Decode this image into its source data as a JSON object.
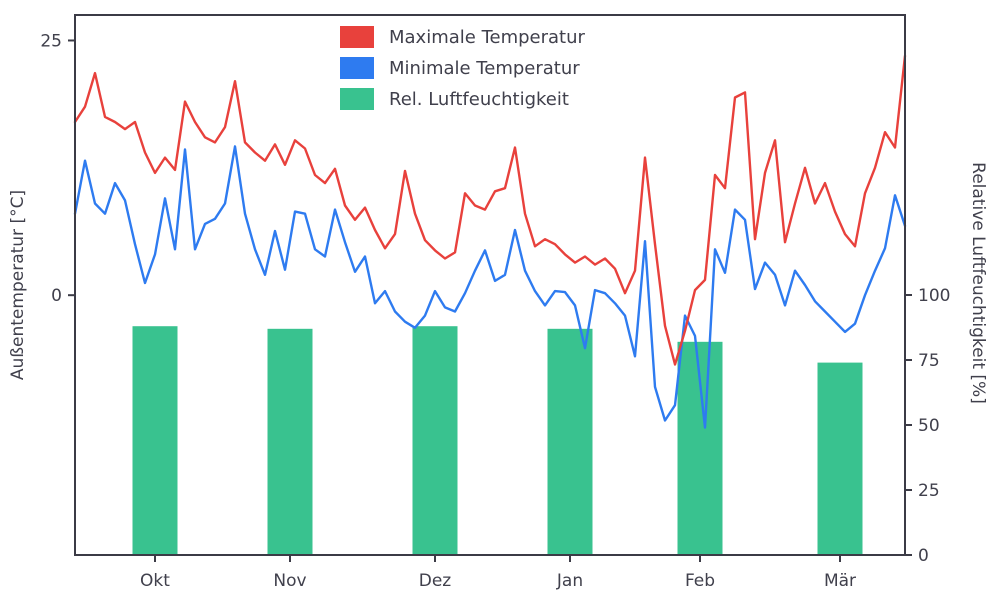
{
  "colors": {
    "max_temp": "#e8413c",
    "min_temp": "#2e7bf0",
    "humidity": "#39c28f",
    "axis": "#3b3b46",
    "text": "#40404c",
    "background": "#ffffff"
  },
  "chart_data": {
    "type": "line+bar",
    "title": "",
    "x_unit": "days from season start (Oct–Mar, daily values)",
    "x_range": [
      0,
      166
    ],
    "x": [
      0,
      2,
      4,
      6,
      8,
      10,
      12,
      14,
      16,
      18,
      20,
      22,
      24,
      26,
      28,
      30,
      32,
      34,
      36,
      38,
      40,
      42,
      44,
      46,
      48,
      50,
      52,
      54,
      56,
      58,
      60,
      62,
      64,
      66,
      68,
      70,
      72,
      74,
      76,
      78,
      80,
      82,
      84,
      86,
      88,
      90,
      92,
      94,
      96,
      98,
      100,
      102,
      104,
      106,
      108,
      110,
      112,
      114,
      116,
      118,
      120,
      122,
      124,
      126,
      128,
      130,
      132,
      134,
      136,
      138,
      140,
      142,
      144,
      146,
      148,
      150,
      152,
      154,
      156,
      158,
      160,
      162,
      164,
      166
    ],
    "series": [
      {
        "name": "Maximale Temperatur",
        "type": "line",
        "axis": "left",
        "color": "#e8413c",
        "values": [
          17.0,
          18.5,
          21.8,
          17.5,
          17.0,
          16.3,
          17.0,
          14.0,
          12.0,
          13.5,
          12.3,
          19.0,
          17.0,
          15.5,
          15.0,
          16.5,
          21.0,
          15.0,
          14.0,
          13.2,
          14.8,
          12.8,
          15.2,
          14.4,
          11.8,
          11.0,
          12.4,
          8.8,
          7.4,
          8.6,
          6.4,
          4.6,
          6.0,
          12.2,
          8.0,
          5.4,
          4.4,
          3.6,
          4.2,
          10.0,
          8.8,
          8.4,
          10.2,
          10.5,
          14.5,
          8.0,
          4.8,
          5.5,
          5.0,
          4.0,
          3.2,
          3.8,
          3.0,
          3.6,
          2.6,
          0.2,
          2.4,
          13.5,
          5.0,
          -3.0,
          -6.8,
          -3.5,
          0.5,
          1.5,
          11.8,
          10.5,
          19.4,
          19.9,
          5.5,
          12.0,
          15.2,
          5.2,
          9.0,
          12.5,
          9.0,
          11.0,
          8.2,
          6.0,
          4.8,
          10.0,
          12.5,
          16.0,
          14.5,
          23.5
        ]
      },
      {
        "name": "Minimale Temperatur",
        "type": "line",
        "axis": "left",
        "color": "#2e7bf0",
        "values": [
          8.0,
          13.2,
          9.0,
          8.0,
          11.0,
          9.3,
          5.0,
          1.2,
          4.0,
          9.5,
          4.5,
          14.3,
          4.5,
          7.0,
          7.5,
          9.0,
          14.6,
          8.0,
          4.5,
          2.0,
          6.3,
          2.5,
          8.2,
          8.0,
          4.5,
          3.8,
          8.4,
          5.2,
          2.3,
          3.8,
          -0.8,
          0.4,
          -1.6,
          -2.6,
          -3.2,
          -2.0,
          0.4,
          -1.2,
          -1.6,
          0.2,
          2.4,
          4.4,
          1.4,
          2.0,
          6.4,
          2.4,
          0.4,
          -1.0,
          0.4,
          0.3,
          -1.0,
          -5.2,
          0.5,
          0.2,
          -0.8,
          -2.0,
          -6.0,
          5.3,
          -9.0,
          -12.3,
          -10.8,
          -2.0,
          -4.0,
          -13.0,
          4.5,
          2.2,
          8.4,
          7.4,
          0.6,
          3.2,
          2.0,
          -1.0,
          2.4,
          1.0,
          -0.6,
          -1.6,
          -2.6,
          -3.6,
          -2.8,
          0.0,
          2.4,
          4.6,
          9.8,
          6.8
        ]
      },
      {
        "name": "Rel. Luftfeuchtigkeit",
        "type": "bar",
        "axis": "right",
        "color": "#39c28f",
        "categories": [
          "Okt",
          "Nov",
          "Dez",
          "Jan",
          "Feb",
          "Mär"
        ],
        "centers": [
          16,
          43,
          72,
          99,
          125,
          153
        ],
        "bar_width_days": 9,
        "values": [
          88,
          87,
          88,
          87,
          82,
          74
        ]
      }
    ],
    "x_ticks": {
      "positions": [
        16,
        43,
        72,
        99,
        125,
        153
      ],
      "labels": [
        "Okt",
        "Nov",
        "Dez",
        "Jan",
        "Feb",
        "Mär"
      ]
    },
    "left_axis": {
      "label": "Außentemperatur [°C]",
      "ticks": [
        0,
        25
      ],
      "range": [
        -25.5,
        27.5
      ]
    },
    "right_axis": {
      "label": "Relative Luftfeuchtigkeit [%]",
      "ticks": [
        0,
        25,
        50,
        75,
        100
      ],
      "range": [
        0,
        207.7
      ]
    },
    "legend": {
      "position": "upper-center",
      "frame": false,
      "entries": [
        "Maximale Temperatur",
        "Minimale Temperatur",
        "Rel. Luftfeuchtigkeit"
      ]
    }
  }
}
